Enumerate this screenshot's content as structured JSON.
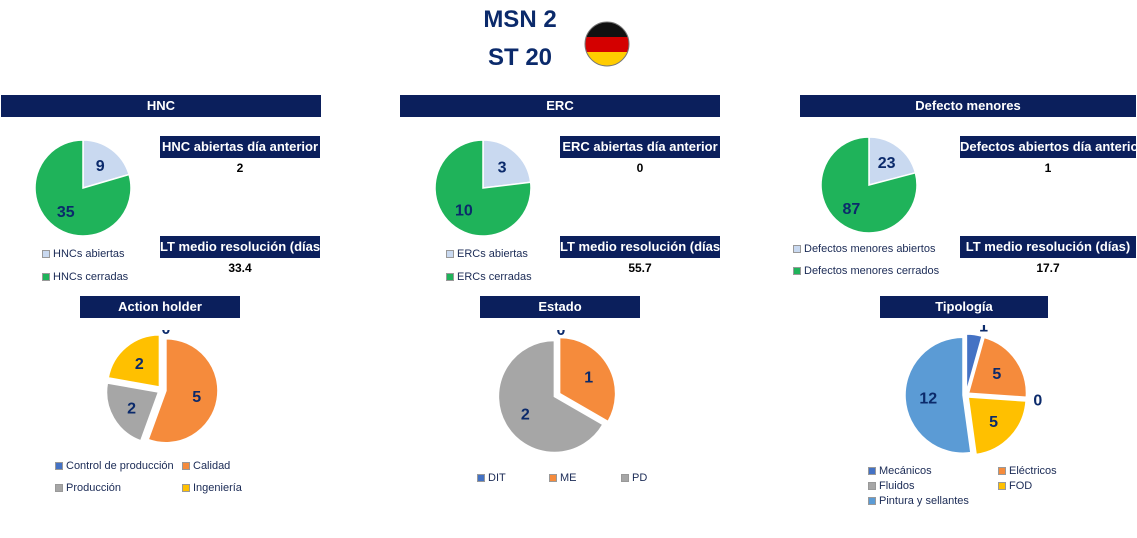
{
  "header": {
    "title_line1": "MSN 2",
    "title_line2": "ST 20",
    "flag": "germany-flag"
  },
  "panels": {
    "hnc": {
      "title": "HNC",
      "kpi1_label": "HNC abiertas día anterior",
      "kpi1_value": "2",
      "kpi2_label": "LT medio resolución (días)",
      "kpi2_value": "33.4",
      "legend": [
        "HNCs abiertas",
        "HNCs cerradas"
      ]
    },
    "erc": {
      "title": "ERC",
      "kpi1_label": "ERC abiertas día anterior",
      "kpi1_value": "0",
      "kpi2_label": "LT medio resolución (días)",
      "kpi2_value": "55.7",
      "legend": [
        "ERCs abiertas",
        "ERCs cerradas"
      ]
    },
    "def": {
      "title": "Defecto menores",
      "kpi1_label": "Defectos abiertos día anterior",
      "kpi1_value": "1",
      "kpi2_label": "LT medio resolución (días)",
      "kpi2_value": "17.7",
      "legend": [
        "Defectos menores abiertos",
        "Defectos menores cerrados"
      ]
    },
    "action": {
      "title": "Action holder",
      "legend": [
        "Control de producción",
        "Calidad",
        "Producción",
        "Ingeniería"
      ]
    },
    "estado": {
      "title": "Estado",
      "legend": [
        "DIT",
        "ME",
        "PD"
      ]
    },
    "tipo": {
      "title": "Tipología",
      "legend": [
        "Mecánicos",
        "Eléctricos",
        "Fluidos",
        "FOD",
        "Pintura y sellantes"
      ]
    }
  },
  "colors": {
    "header_bg": "#0b1f5c",
    "open": "#c9d9f0",
    "closed": "#1fb35a",
    "blue": "#4472c4",
    "orange": "#f58b3c",
    "gray": "#a6a6a6",
    "yellow": "#ffc000",
    "light_blue": "#5b9bd5"
  },
  "chart_data": [
    {
      "type": "pie",
      "id": "hnc",
      "series": [
        {
          "name": "HNCs abiertas",
          "value": 9,
          "color": "#c9d9f0"
        },
        {
          "name": "HNCs cerradas",
          "value": 35,
          "color": "#1fb35a"
        }
      ]
    },
    {
      "type": "pie",
      "id": "erc",
      "series": [
        {
          "name": "ERCs abiertas",
          "value": 3,
          "color": "#c9d9f0"
        },
        {
          "name": "ERCs cerradas",
          "value": 10,
          "color": "#1fb35a"
        }
      ]
    },
    {
      "type": "pie",
      "id": "def",
      "series": [
        {
          "name": "Defectos menores abiertos",
          "value": 23,
          "color": "#c9d9f0"
        },
        {
          "name": "Defectos menores cerrados",
          "value": 87,
          "color": "#1fb35a"
        }
      ]
    },
    {
      "type": "pie",
      "id": "action",
      "series": [
        {
          "name": "Control de producción",
          "value": 0,
          "color": "#4472c4"
        },
        {
          "name": "Calidad",
          "value": 5,
          "color": "#f58b3c"
        },
        {
          "name": "Producción",
          "value": 2,
          "color": "#a6a6a6"
        },
        {
          "name": "Ingeniería",
          "value": 2,
          "color": "#ffc000"
        }
      ]
    },
    {
      "type": "pie",
      "id": "estado",
      "series": [
        {
          "name": "DIT",
          "value": 0,
          "color": "#4472c4"
        },
        {
          "name": "ME",
          "value": 1,
          "color": "#f58b3c"
        },
        {
          "name": "PD",
          "value": 2,
          "color": "#a6a6a6"
        }
      ]
    },
    {
      "type": "pie",
      "id": "tipo",
      "series": [
        {
          "name": "Mecánicos",
          "value": 1,
          "color": "#4472c4"
        },
        {
          "name": "Eléctricos",
          "value": 5,
          "color": "#f58b3c"
        },
        {
          "name": "Fluidos",
          "value": 0,
          "color": "#a6a6a6"
        },
        {
          "name": "FOD",
          "value": 5,
          "color": "#ffc000"
        },
        {
          "name": "Pintura y sellantes",
          "value": 12,
          "color": "#5b9bd5"
        }
      ]
    }
  ]
}
